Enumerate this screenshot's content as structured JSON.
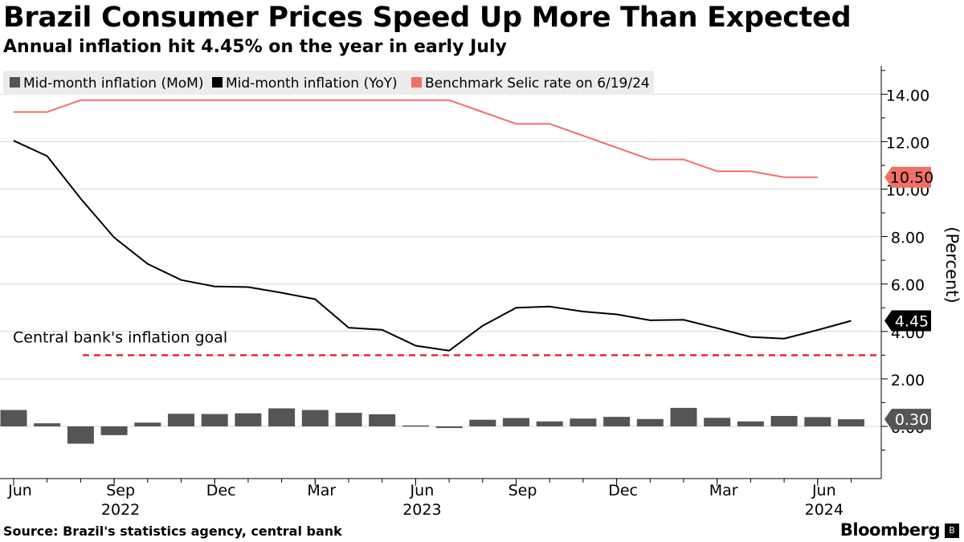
{
  "header": {
    "title": "Brazil Consumer Prices Speed Up More Than Expected",
    "subtitle": "Annual inflation hit 4.45% on the year in early July"
  },
  "footer": {
    "source": "Source: Brazil's statistics agency,  central bank",
    "brand": "Bloomberg",
    "brand_icon": "B"
  },
  "colors": {
    "mom": "#555555",
    "yoy": "#000000",
    "selic": "#f07068",
    "goal": "#e8273c",
    "grid": "#d8d8d8"
  },
  "chart_data": {
    "type": "line",
    "categories": [
      "Jun 2022",
      "Jul 2022",
      "Aug 2022",
      "Sep 2022",
      "Oct 2022",
      "Nov 2022",
      "Dec 2022",
      "Jan 2023",
      "Feb 2023",
      "Mar 2023",
      "Apr 2023",
      "May 2023",
      "Jun 2023",
      "Jul 2023",
      "Aug 2023",
      "Sep 2023",
      "Oct 2023",
      "Nov 2023",
      "Dec 2023",
      "Jan 2024",
      "Feb 2024",
      "Mar 2024",
      "Apr 2024",
      "May 2024",
      "Jun 2024",
      "Jul 2024"
    ],
    "series": [
      {
        "name": "Mid-month inflation (MoM)",
        "type": "bar",
        "values": [
          0.69,
          0.13,
          -0.73,
          -0.37,
          0.16,
          0.53,
          0.52,
          0.55,
          0.76,
          0.69,
          0.57,
          0.51,
          0.04,
          -0.07,
          0.28,
          0.35,
          0.21,
          0.33,
          0.4,
          0.31,
          0.78,
          0.36,
          0.21,
          0.44,
          0.39,
          0.3
        ]
      },
      {
        "name": "Mid-month inflation (YoY)",
        "type": "line",
        "values": [
          12.04,
          11.39,
          9.6,
          7.96,
          6.85,
          6.17,
          5.9,
          5.87,
          5.63,
          5.36,
          4.16,
          4.07,
          3.4,
          3.19,
          4.24,
          5.0,
          5.05,
          4.84,
          4.72,
          4.47,
          4.49,
          4.14,
          3.77,
          3.7,
          4.06,
          4.45
        ]
      },
      {
        "name": "Benchmark Selic rate on 6/19/24",
        "type": "step",
        "values": [
          13.25,
          13.25,
          13.75,
          13.75,
          13.75,
          13.75,
          13.75,
          13.75,
          13.75,
          13.75,
          13.75,
          13.75,
          13.75,
          13.75,
          13.25,
          12.75,
          12.75,
          12.25,
          11.75,
          11.25,
          11.25,
          10.75,
          10.75,
          10.5,
          10.5,
          null
        ]
      }
    ],
    "reference_lines": [
      {
        "label": "Central bank's inflation goal",
        "value": 3.0
      }
    ],
    "end_labels": {
      "selic": "10.50",
      "yoy": "4.45",
      "mom": "0.30"
    },
    "x_tick_labels": [
      {
        "index": 0,
        "month": "Jun",
        "year": ""
      },
      {
        "index": 3,
        "month": "Sep",
        "year": "2022"
      },
      {
        "index": 6,
        "month": "Dec",
        "year": ""
      },
      {
        "index": 9,
        "month": "Mar",
        "year": ""
      },
      {
        "index": 12,
        "month": "Jun",
        "year": "2023"
      },
      {
        "index": 15,
        "month": "Sep",
        "year": ""
      },
      {
        "index": 18,
        "month": "Dec",
        "year": ""
      },
      {
        "index": 21,
        "month": "Mar",
        "year": ""
      },
      {
        "index": 24,
        "month": "Jun",
        "year": "2024"
      }
    ],
    "y_ticks": [
      "0.00",
      "2.00",
      "4.00",
      "6.00",
      "8.00",
      "10.00",
      "12.00",
      "14.00"
    ],
    "ylabel": "(Percent)",
    "ylim": [
      -2.0,
      15.2
    ],
    "legend_position": "top-left"
  }
}
